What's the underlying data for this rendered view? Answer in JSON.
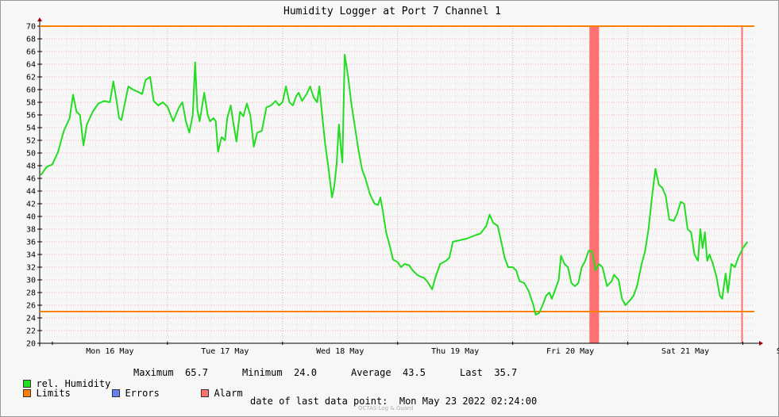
{
  "chart_data": {
    "type": "line",
    "title": "Humidity Logger at Port 7 Channel 1",
    "x_range": [
      "Mon May 16 2022 00:00",
      "Mon May 23 2022 02:24"
    ],
    "ylim": [
      20,
      70
    ],
    "y_ticks": [
      20,
      22,
      24,
      26,
      28,
      30,
      32,
      34,
      36,
      38,
      40,
      42,
      44,
      46,
      48,
      50,
      52,
      54,
      56,
      58,
      60,
      62,
      64,
      66,
      68,
      70
    ],
    "x_ticks": [
      "Mon 16 May",
      "Tue 17 May",
      "Wed 18 May",
      "Thu 19 May",
      "Fri 20 May",
      "Sat 21 May",
      "Sun 22 May"
    ],
    "grid": true,
    "limits": {
      "upper": 70,
      "lower": 25,
      "color": "#ff8000"
    },
    "alarm_periods": [
      {
        "start": "Fri 20 May 16:00",
        "end": "Fri 20 May 18:00",
        "color": "#ff7070"
      },
      {
        "start": "Sat 21 May 23:40",
        "end": "Sat 21 May 23:59",
        "color": "#ff7070"
      }
    ],
    "series": [
      {
        "name": "rel. Humidity",
        "color": "#22dd22",
        "points": [
          [
            -0.1,
            46.5
          ],
          [
            -0.05,
            47.8
          ],
          [
            0.0,
            48.2
          ],
          [
            0.05,
            50.2
          ],
          [
            0.1,
            53.5
          ],
          [
            0.15,
            55.5
          ],
          [
            0.18,
            59.2
          ],
          [
            0.21,
            56.5
          ],
          [
            0.24,
            56.0
          ],
          [
            0.27,
            51.2
          ],
          [
            0.3,
            54.5
          ],
          [
            0.35,
            56.5
          ],
          [
            0.4,
            57.8
          ],
          [
            0.45,
            58.2
          ],
          [
            0.5,
            58.0
          ],
          [
            0.53,
            61.3
          ],
          [
            0.56,
            58.0
          ],
          [
            0.58,
            55.5
          ],
          [
            0.6,
            55.2
          ],
          [
            0.63,
            57.8
          ],
          [
            0.66,
            60.5
          ],
          [
            0.7,
            60.0
          ],
          [
            0.75,
            59.6
          ],
          [
            0.78,
            59.3
          ],
          [
            0.81,
            61.5
          ],
          [
            0.85,
            62.0
          ],
          [
            0.88,
            58.2
          ],
          [
            0.92,
            57.5
          ],
          [
            0.96,
            58.0
          ],
          [
            1.0,
            57.3
          ],
          [
            1.05,
            55.0
          ],
          [
            1.1,
            57.2
          ],
          [
            1.13,
            58.0
          ],
          [
            1.16,
            55.0
          ],
          [
            1.19,
            53.2
          ],
          [
            1.22,
            56.0
          ],
          [
            1.24,
            64.3
          ],
          [
            1.26,
            56.8
          ],
          [
            1.28,
            55.0
          ],
          [
            1.3,
            57.2
          ],
          [
            1.32,
            59.5
          ],
          [
            1.35,
            56.0
          ],
          [
            1.37,
            55.0
          ],
          [
            1.4,
            55.5
          ],
          [
            1.42,
            55.0
          ],
          [
            1.44,
            50.2
          ],
          [
            1.47,
            52.5
          ],
          [
            1.5,
            52.0
          ],
          [
            1.52,
            55.5
          ],
          [
            1.55,
            57.5
          ],
          [
            1.57,
            55.0
          ],
          [
            1.6,
            51.8
          ],
          [
            1.63,
            56.5
          ],
          [
            1.66,
            55.8
          ],
          [
            1.69,
            57.8
          ],
          [
            1.72,
            56.0
          ],
          [
            1.75,
            51.0
          ],
          [
            1.78,
            53.2
          ],
          [
            1.82,
            53.5
          ],
          [
            1.86,
            57.2
          ],
          [
            1.9,
            57.5
          ],
          [
            1.94,
            58.2
          ],
          [
            1.97,
            57.5
          ],
          [
            2.0,
            58.0
          ],
          [
            2.03,
            60.5
          ],
          [
            2.06,
            58.0
          ],
          [
            2.09,
            57.5
          ],
          [
            2.12,
            59.0
          ],
          [
            2.14,
            59.5
          ],
          [
            2.17,
            58.2
          ],
          [
            2.21,
            59.3
          ],
          [
            2.24,
            60.5
          ],
          [
            2.27,
            58.8
          ],
          [
            2.3,
            58.0
          ],
          [
            2.32,
            60.5
          ],
          [
            2.35,
            55.0
          ],
          [
            2.37,
            51.5
          ],
          [
            2.4,
            47.5
          ],
          [
            2.43,
            43.0
          ],
          [
            2.45,
            44.8
          ],
          [
            2.47,
            48.2
          ],
          [
            2.49,
            54.5
          ],
          [
            2.51,
            50.2
          ],
          [
            2.52,
            48.5
          ],
          [
            2.54,
            65.5
          ],
          [
            2.57,
            62.0
          ],
          [
            2.6,
            57.5
          ],
          [
            2.63,
            54.0
          ],
          [
            2.66,
            50.5
          ],
          [
            2.69,
            47.5
          ],
          [
            2.72,
            46.0
          ],
          [
            2.76,
            43.5
          ],
          [
            2.8,
            42.0
          ],
          [
            2.83,
            41.8
          ],
          [
            2.85,
            43.0
          ],
          [
            2.87,
            41.0
          ],
          [
            2.9,
            37.5
          ],
          [
            2.93,
            35.5
          ],
          [
            2.96,
            33.2
          ],
          [
            3.0,
            32.8
          ],
          [
            3.03,
            32.0
          ],
          [
            3.06,
            32.5
          ],
          [
            3.1,
            32.3
          ],
          [
            3.13,
            31.5
          ],
          [
            3.17,
            30.8
          ],
          [
            3.2,
            30.5
          ],
          [
            3.23,
            30.3
          ],
          [
            3.26,
            29.7
          ],
          [
            3.3,
            28.5
          ],
          [
            3.33,
            30.5
          ],
          [
            3.37,
            32.5
          ],
          [
            3.42,
            33.0
          ],
          [
            3.45,
            33.5
          ],
          [
            3.48,
            36.0
          ],
          [
            3.53,
            36.2
          ],
          [
            3.6,
            36.5
          ],
          [
            3.67,
            37.0
          ],
          [
            3.72,
            37.3
          ],
          [
            3.77,
            38.5
          ],
          [
            3.8,
            40.3
          ],
          [
            3.83,
            39.0
          ],
          [
            3.87,
            38.5
          ],
          [
            3.9,
            36.0
          ],
          [
            3.93,
            33.5
          ],
          [
            3.96,
            32.0
          ],
          [
            4.0,
            32.0
          ],
          [
            4.03,
            31.5
          ],
          [
            4.06,
            29.8
          ],
          [
            4.1,
            29.5
          ],
          [
            4.14,
            28.2
          ],
          [
            4.18,
            26.0
          ],
          [
            4.2,
            24.5
          ],
          [
            4.23,
            24.8
          ],
          [
            4.26,
            26.0
          ],
          [
            4.29,
            27.5
          ],
          [
            4.32,
            28.0
          ],
          [
            4.34,
            27.0
          ],
          [
            4.37,
            28.5
          ],
          [
            4.4,
            30.0
          ],
          [
            4.42,
            33.8
          ],
          [
            4.45,
            32.5
          ],
          [
            4.48,
            32.0
          ],
          [
            4.51,
            29.5
          ],
          [
            4.54,
            29.0
          ],
          [
            4.57,
            29.5
          ],
          [
            4.6,
            32.0
          ],
          [
            4.63,
            33.0
          ],
          [
            4.66,
            34.6
          ],
          [
            4.69,
            34.5
          ],
          [
            4.72,
            31.5
          ],
          [
            4.75,
            32.5
          ],
          [
            4.78,
            32.0
          ],
          [
            4.82,
            29.0
          ],
          [
            4.86,
            29.8
          ],
          [
            4.88,
            30.8
          ],
          [
            4.92,
            30.0
          ],
          [
            4.95,
            27.0
          ],
          [
            4.98,
            26.0
          ],
          [
            5.02,
            26.8
          ],
          [
            5.05,
            27.5
          ],
          [
            5.08,
            29.0
          ],
          [
            5.12,
            32.5
          ],
          [
            5.15,
            34.5
          ],
          [
            5.18,
            38.0
          ],
          [
            5.21,
            43.0
          ],
          [
            5.24,
            47.5
          ],
          [
            5.27,
            45.0
          ],
          [
            5.3,
            44.5
          ],
          [
            5.33,
            43.2
          ],
          [
            5.36,
            39.5
          ],
          [
            5.4,
            39.3
          ],
          [
            5.43,
            40.5
          ],
          [
            5.46,
            42.3
          ],
          [
            5.49,
            42.0
          ],
          [
            5.52,
            38.0
          ],
          [
            5.55,
            37.5
          ],
          [
            5.58,
            34.0
          ],
          [
            5.61,
            33.0
          ],
          [
            5.63,
            38.0
          ],
          [
            5.65,
            35.0
          ],
          [
            5.67,
            37.5
          ],
          [
            5.69,
            33.0
          ],
          [
            5.71,
            34.0
          ],
          [
            5.74,
            32.5
          ],
          [
            5.77,
            30.5
          ],
          [
            5.8,
            27.5
          ],
          [
            5.82,
            27.0
          ],
          [
            5.85,
            31.0
          ],
          [
            5.87,
            28.0
          ],
          [
            5.9,
            32.5
          ],
          [
            5.93,
            32.0
          ],
          [
            5.96,
            33.5
          ],
          [
            6.0,
            35.0
          ],
          [
            6.02,
            35.5
          ],
          [
            6.04,
            36.0
          ]
        ]
      }
    ],
    "legend": {
      "row1": [
        {
          "label": "rel. Humidity",
          "color": "#22dd22"
        }
      ],
      "row2": [
        {
          "label": "Limits",
          "color": "#ff8000"
        },
        {
          "label": "Errors",
          "color": "#6a7ff0"
        },
        {
          "label": "Alarm",
          "color": "#ff7070"
        }
      ],
      "stats": {
        "maximum_label": "Maximum",
        "maximum_value": "65.7",
        "minimum_label": "Minimum",
        "minimum_value": "24.0",
        "average_label": "Average",
        "average_value": "43.5",
        "last_label": "Last",
        "last_value": "35.7"
      }
    },
    "footer": {
      "label": "date of last data point:",
      "value": "Mon May 23 2022 02:24:00"
    },
    "credit": "OCTAS Log & Guard"
  }
}
